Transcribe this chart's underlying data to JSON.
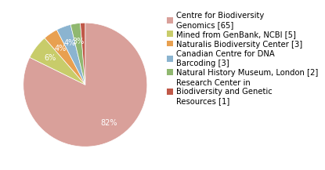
{
  "labels": [
    "Centre for Biodiversity\nGenomics [65]",
    "Mined from GenBank, NCBI [5]",
    "Naturalis Biodiversity Center [3]",
    "Canadian Centre for DNA\nBarcoding [3]",
    "Natural History Museum, London [2]",
    "Research Center in\nBiodiversity and Genetic\nResources [1]"
  ],
  "values": [
    65,
    5,
    3,
    3,
    2,
    1
  ],
  "colors": [
    "#d9a09a",
    "#c8cc6a",
    "#e8a050",
    "#8bb4d0",
    "#90b870",
    "#c05848"
  ],
  "background_color": "#ffffff",
  "text_color": "#ffffff",
  "legend_fontsize": 7.2,
  "autopct_fontsize": 7
}
